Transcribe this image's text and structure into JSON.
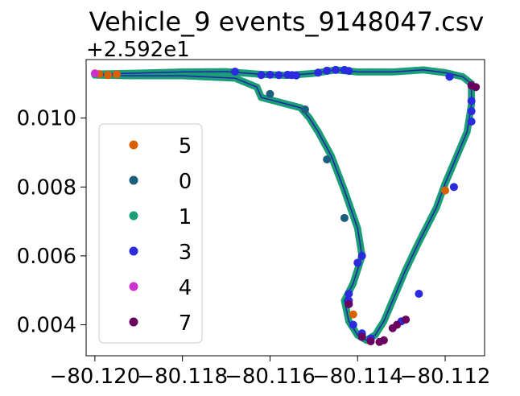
{
  "chart_data": {
    "type": "scatter",
    "title": "Vehicle_9 events_9148047.csv",
    "xlabel": "",
    "ylabel": "",
    "y_offset_label": "+2.592e1",
    "xlim": [
      -80.1202,
      -80.1111
    ],
    "ylim": [
      0.0031,
      0.0117
    ],
    "x_ticks": [
      -80.12,
      -80.118,
      -80.116,
      -80.114,
      -80.112
    ],
    "x_tick_labels": [
      "−80.120",
      "−80.118",
      "−80.116",
      "−80.114",
      "−80.112"
    ],
    "y_ticks": [
      0.004,
      0.006,
      0.008,
      0.01
    ],
    "y_tick_labels": [
      "0.004",
      "0.006",
      "0.008",
      "0.010"
    ],
    "grid": false,
    "legend_position": "center-left",
    "track_color": "#2222aa",
    "series": [
      {
        "name": "5",
        "color": "#d95f02",
        "points": [
          [
            -80.1199,
            0.01128
          ],
          [
            -80.1197,
            0.01125
          ],
          [
            -80.1195,
            0.01127
          ],
          [
            -80.1141,
            0.0043
          ],
          [
            -80.112,
            0.0079
          ]
        ]
      },
      {
        "name": "0",
        "color": "#1b5e7e",
        "points": [
          [
            -80.116,
            0.0107
          ],
          [
            -80.1152,
            0.01025
          ],
          [
            -80.1147,
            0.0088
          ],
          [
            -80.1143,
            0.0071
          ]
        ]
      },
      {
        "name": "1",
        "color": "#1b9e77",
        "points": []
      },
      {
        "name": "3",
        "color": "#2b2bdd",
        "points": [
          [
            -80.1168,
            0.01135
          ],
          [
            -80.1162,
            0.01125
          ],
          [
            -80.116,
            0.01126
          ],
          [
            -80.1158,
            0.01125
          ],
          [
            -80.1156,
            0.01126
          ],
          [
            -80.1155,
            0.01125
          ],
          [
            -80.1154,
            0.01124
          ],
          [
            -80.1149,
            0.01132
          ],
          [
            -80.1147,
            0.01138
          ],
          [
            -80.1145,
            0.0114
          ],
          [
            -80.1143,
            0.0114
          ],
          [
            -80.1142,
            0.01137
          ],
          [
            -80.1139,
            0.006
          ],
          [
            -80.114,
            0.0058
          ],
          [
            -80.1142,
            0.0049
          ],
          [
            -80.1142,
            0.0047
          ],
          [
            -80.1141,
            0.004
          ],
          [
            -80.1139,
            0.00375
          ],
          [
            -80.1137,
            0.0036
          ],
          [
            -80.113,
            0.0041
          ],
          [
            -80.1126,
            0.0049
          ],
          [
            -80.1118,
            0.008
          ],
          [
            -80.1114,
            0.0099
          ],
          [
            -80.1114,
            0.0102
          ],
          [
            -80.1114,
            0.0105
          ],
          [
            -80.1119,
            0.0112
          ]
        ]
      },
      {
        "name": "4",
        "color": "#cc33cc",
        "points": [
          [
            -80.12,
            0.0113
          ]
        ]
      },
      {
        "name": "7",
        "color": "#6a0060",
        "points": [
          [
            -80.1139,
            0.00365
          ],
          [
            -80.1137,
            0.00352
          ],
          [
            -80.1135,
            0.0035
          ],
          [
            -80.1134,
            0.00355
          ],
          [
            -80.1132,
            0.0039
          ],
          [
            -80.1131,
            0.004
          ],
          [
            -80.1129,
            0.00415
          ],
          [
            -80.1142,
            0.0046
          ],
          [
            -80.1114,
            0.01095
          ],
          [
            -80.1113,
            0.0109
          ]
        ]
      }
    ],
    "track": [
      [
        -80.12,
        0.01128
      ],
      [
        -80.1192,
        0.0113
      ],
      [
        -80.118,
        0.01134
      ],
      [
        -80.117,
        0.01135
      ],
      [
        -80.1162,
        0.01127
      ],
      [
        -80.1156,
        0.01124
      ],
      [
        -80.115,
        0.0113
      ],
      [
        -80.1145,
        0.0114
      ],
      [
        -80.114,
        0.01134
      ],
      [
        -80.1132,
        0.01134
      ],
      [
        -80.1125,
        0.0114
      ],
      [
        -80.112,
        0.01132
      ],
      [
        -80.1116,
        0.0112
      ],
      [
        -80.1114,
        0.011
      ],
      [
        -80.1114,
        0.0104
      ],
      [
        -80.1115,
        0.0096
      ],
      [
        -80.1118,
        0.0087
      ],
      [
        -80.112,
        0.0081
      ],
      [
        -80.1122,
        0.0074
      ],
      [
        -80.1126,
        0.0064
      ],
      [
        -80.1129,
        0.0056
      ],
      [
        -80.1132,
        0.0047
      ],
      [
        -80.1134,
        0.0041
      ],
      [
        -80.1136,
        0.0037
      ],
      [
        -80.1138,
        0.00355
      ],
      [
        -80.114,
        0.0037
      ],
      [
        -80.1142,
        0.0041
      ],
      [
        -80.1143,
        0.0047
      ],
      [
        -80.1141,
        0.0052
      ],
      [
        -80.1139,
        0.006
      ],
      [
        -80.114,
        0.0068
      ],
      [
        -80.1143,
        0.0079
      ],
      [
        -80.1146,
        0.0089
      ],
      [
        -80.1149,
        0.0096
      ],
      [
        -80.1151,
        0.01
      ],
      [
        -80.1153,
        0.0103
      ],
      [
        -80.1159,
        0.0105
      ],
      [
        -80.1162,
        0.0106
      ],
      [
        -80.1163,
        0.0109
      ],
      [
        -80.1168,
        0.01116
      ],
      [
        -80.118,
        0.01123
      ],
      [
        -80.1192,
        0.01123
      ],
      [
        -80.12,
        0.01125
      ]
    ]
  }
}
